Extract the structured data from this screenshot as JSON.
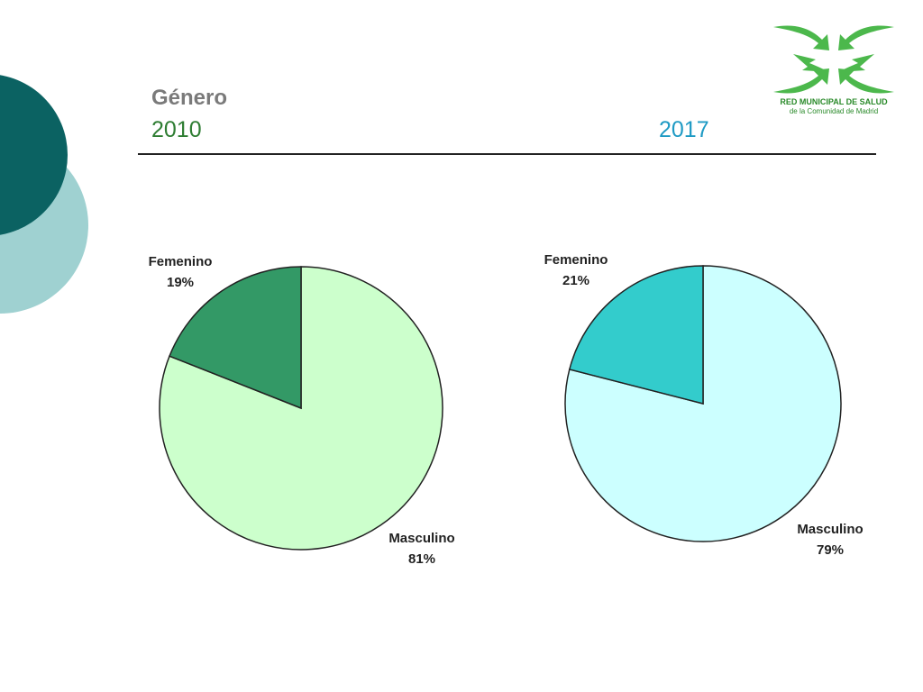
{
  "slide": {
    "title": "Género",
    "year_left": "2010",
    "year_right": "2017"
  },
  "logo": {
    "line1": "RED MUNICIPAL DE SALUD",
    "line2": "de la Comunidad de Madrid",
    "color": "#3aa83a"
  },
  "chart_data": [
    {
      "type": "pie",
      "title": "",
      "categories": [
        "Femenino",
        "Masculino"
      ],
      "values": [
        19,
        81
      ],
      "value_labels": [
        "19%",
        "81%"
      ],
      "colors": [
        "#339966",
        "#ccffcc"
      ]
    },
    {
      "type": "pie",
      "title": "",
      "categories": [
        "Femenino",
        "Masculino"
      ],
      "values": [
        21,
        79
      ],
      "value_labels": [
        "21%",
        "79%"
      ],
      "colors": [
        "#33cccc",
        "#ccffff"
      ]
    }
  ]
}
